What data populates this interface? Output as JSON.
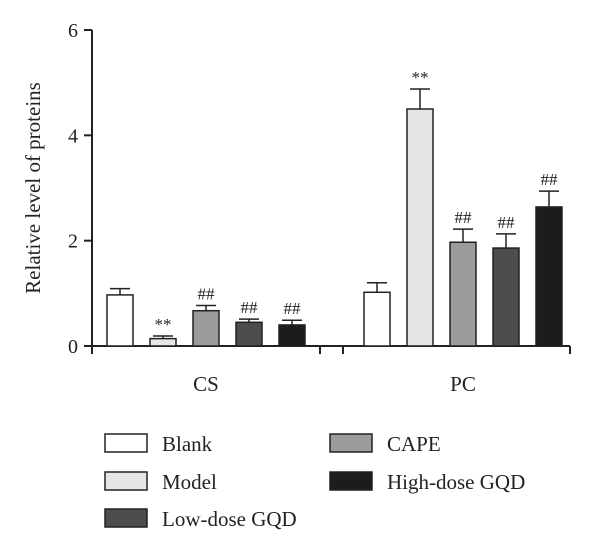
{
  "chart_data": {
    "type": "bar",
    "title": "",
    "xlabel": "",
    "ylabel": "Relative level of proteins",
    "ylim": [
      0,
      6
    ],
    "yticks": [
      0,
      2,
      4,
      6
    ],
    "categories": [
      "CS",
      "PC"
    ],
    "legend_position": "bottom",
    "grid": false,
    "series": [
      {
        "name": "Blank",
        "color": "#ffffff",
        "values": [
          0.97,
          1.02
        ],
        "errors": [
          0.12,
          0.18
        ],
        "annotations": [
          "",
          ""
        ]
      },
      {
        "name": "Model",
        "color": "#e6e6e6",
        "values": [
          0.14,
          4.5
        ],
        "errors": [
          0.05,
          0.38
        ],
        "annotations": [
          "**",
          "**"
        ]
      },
      {
        "name": "CAPE",
        "color": "#9b9b9b",
        "values": [
          0.67,
          1.97
        ],
        "errors": [
          0.1,
          0.25
        ],
        "annotations": [
          "##",
          "##"
        ]
      },
      {
        "name": "Low-dose GQD",
        "color": "#4d4d4d",
        "values": [
          0.45,
          1.86
        ],
        "errors": [
          0.06,
          0.27
        ],
        "annotations": [
          "##",
          "##"
        ]
      },
      {
        "name": "High-dose GQD",
        "color": "#1c1c1c",
        "values": [
          0.4,
          2.64
        ],
        "errors": [
          0.09,
          0.3
        ],
        "annotations": [
          "##",
          "##"
        ]
      }
    ]
  }
}
